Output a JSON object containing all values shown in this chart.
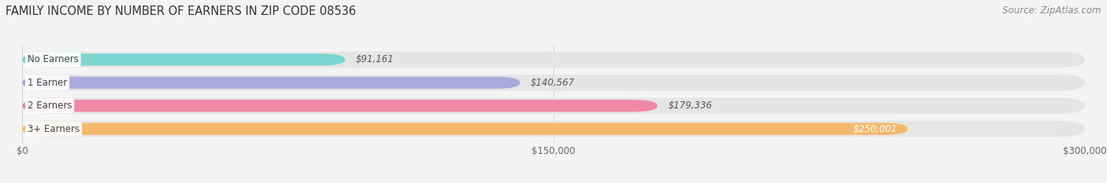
{
  "title": "FAMILY INCOME BY NUMBER OF EARNERS IN ZIP CODE 08536",
  "source": "Source: ZipAtlas.com",
  "categories": [
    "No Earners",
    "1 Earner",
    "2 Earners",
    "3+ Earners"
  ],
  "values": [
    91161,
    140567,
    179336,
    250001
  ],
  "bar_colors": [
    "#7dd5cf",
    "#aaaadc",
    "#f088a8",
    "#f5b96e"
  ],
  "value_labels": [
    "$91,161",
    "$140,567",
    "$179,336",
    "$250,001"
  ],
  "value_label_inside": [
    false,
    false,
    false,
    true
  ],
  "xlim": [
    0,
    300000
  ],
  "xticks": [
    0,
    150000,
    300000
  ],
  "xtick_labels": [
    "$0",
    "$150,000",
    "$300,000"
  ],
  "bg_color": "#f4f4f4",
  "bar_bg_color": "#e5e5e5",
  "title_fontsize": 10.5,
  "source_fontsize": 8.5,
  "label_fontsize": 8.5,
  "value_fontsize": 8.5,
  "tick_fontsize": 8.5
}
